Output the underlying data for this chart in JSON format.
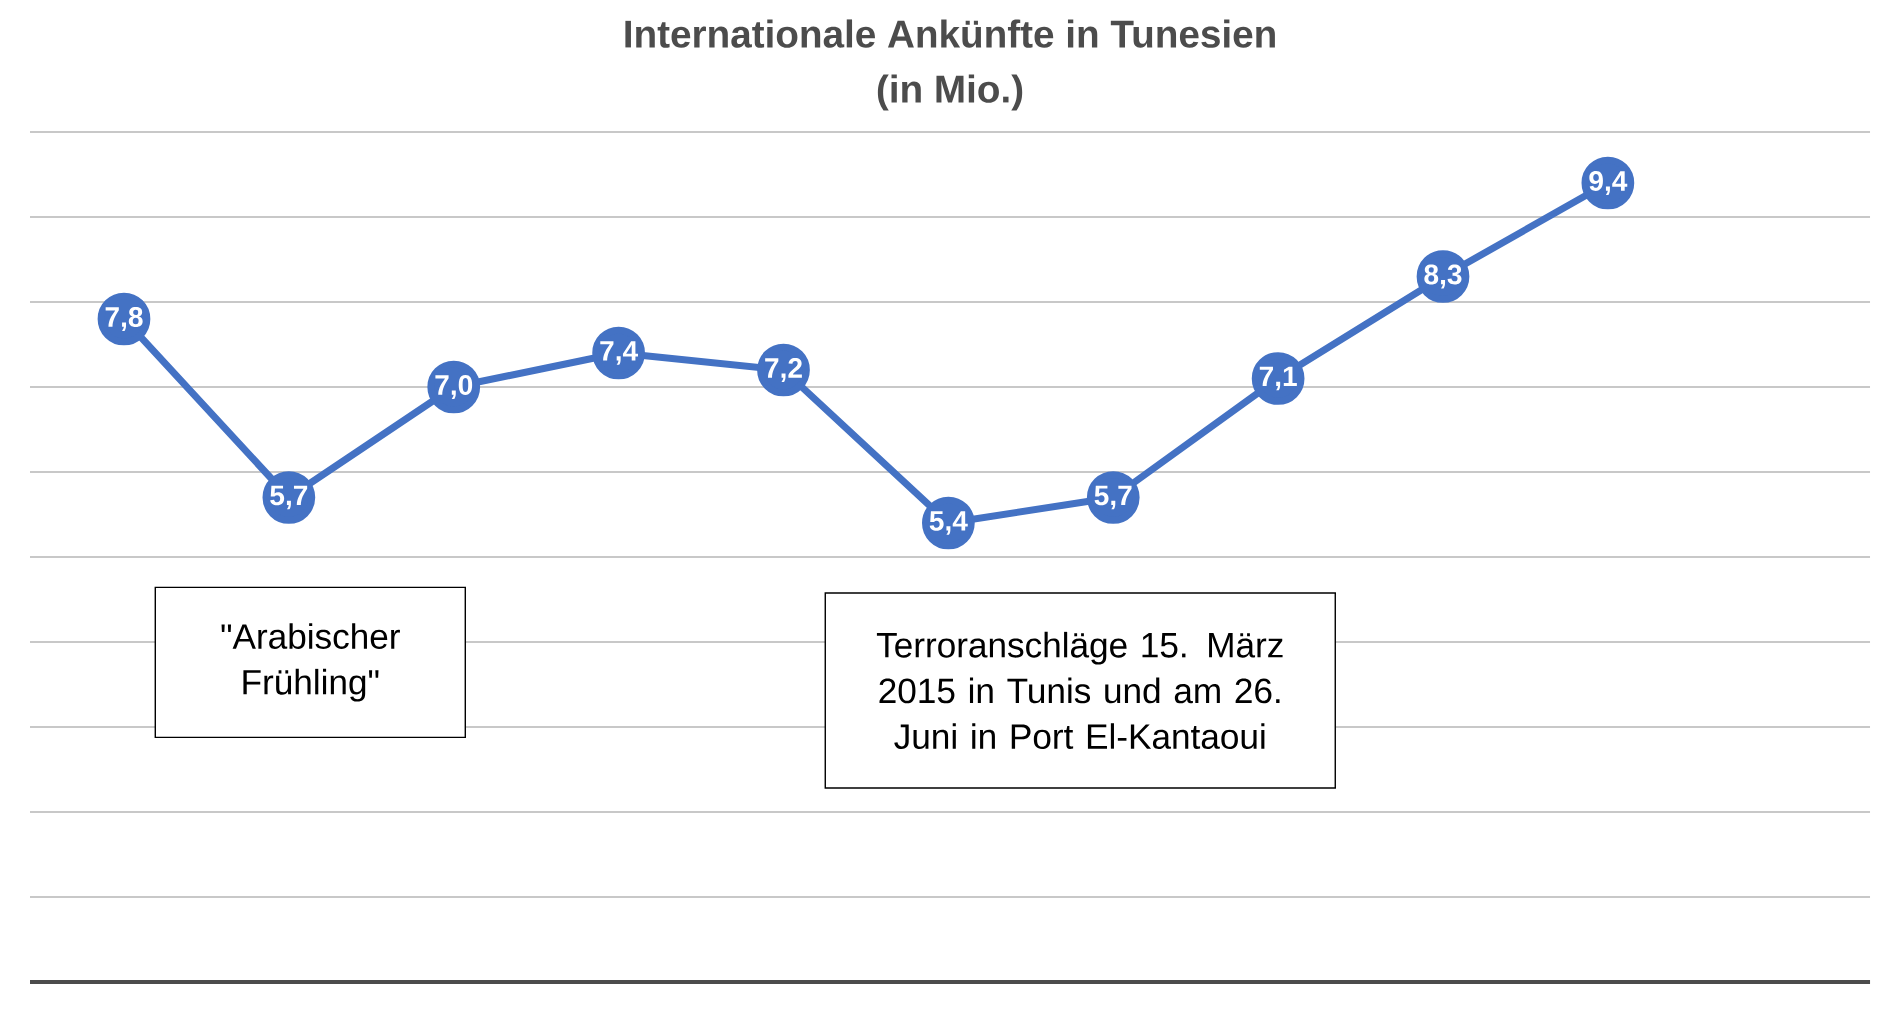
{
  "chart_data": {
    "type": "line",
    "title": "Internationale Ankünfte in Tunesien",
    "subtitle": "(in Mio.)",
    "categories": [
      null,
      null,
      null,
      null,
      null,
      null,
      null,
      null,
      null,
      null
    ],
    "series": [
      {
        "color": "#4472c4",
        "values": [
          7.8,
          5.7,
          7.0,
          7.4,
          7.2,
          5.4,
          5.7,
          7.1,
          8.3,
          9.4
        ],
        "value_labels": [
          "7,8",
          "5,7",
          "7,0",
          "7,4",
          "7,2",
          "5,4",
          "5,7",
          "7,1",
          "8,3",
          "9,4"
        ]
      }
    ],
    "ylim": [
      0,
      10
    ],
    "yticks": [
      {
        "value": 0,
        "label": null
      },
      {
        "value": 1,
        "label": null
      },
      {
        "value": 2,
        "label": null
      },
      {
        "value": 3,
        "label": null
      },
      {
        "value": 4,
        "label": null
      },
      {
        "value": 5,
        "label": null
      },
      {
        "value": 6,
        "label": null
      },
      {
        "value": 7,
        "label": null
      },
      {
        "value": 8,
        "label": null
      },
      {
        "value": 9,
        "label": null
      },
      {
        "value": 10,
        "label": null
      }
    ],
    "grid": "y",
    "marker": "circle",
    "line_style": "solid",
    "annotations": [
      "\"Arabischer Frühling\"",
      "Terroranschläge 15. März 2015 in Tunis und am 26. Juni in Port El-Kantaoui"
    ]
  }
}
